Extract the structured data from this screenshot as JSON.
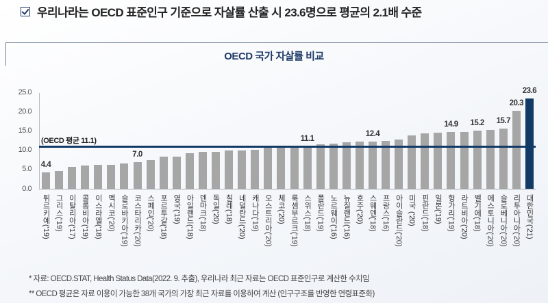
{
  "headline": "우리나라는 OECD 표준인구 기준으로 자살률 산출 시 23.6명으로 평균의 2.1배 수준",
  "headline_icon": "checkbox-checked-icon",
  "chart_data": {
    "type": "bar",
    "title": "OECD 국가 자살률 비교",
    "xlabel": "",
    "ylabel": "",
    "ylim": [
      0,
      25
    ],
    "yticks": [
      "0.0",
      "5.0",
      "10.0",
      "15.0",
      "20.0",
      "25.0"
    ],
    "grid": false,
    "categories": [
      "튀르키예('19)",
      "그리스('19)",
      "이탈리아('17)",
      "콜롬비아('19)",
      "이스라엘('18)",
      "멕시코('20)",
      "슬로바키아('19)",
      "코스타리카('20)",
      "스페인('20)",
      "포르투갈('18)",
      "영국('19)",
      "아일랜드('18)",
      "덴마크('18)",
      "독일('20)",
      "칠레('18)",
      "네덜란드('20)",
      "캐나다('19)",
      "오스트리아('20)",
      "체코('20)",
      "룩셈부르크('19)",
      "스위스('18)",
      "폴란드('19)",
      "노르웨이('16)",
      "뉴질랜드('16)",
      "호주('20)",
      "스웨덴('18)",
      "프랑스('16)",
      "아이슬란드('20)",
      "미국 ('20)",
      "핀란드('18)",
      "일본('19)",
      "헝가리('19)",
      "라트비아('20)",
      "벨기에('18)",
      "에스토니아('20)",
      "슬로베니아('20)",
      "리투아니아('20)",
      "대한민국('21)"
    ],
    "values": [
      4.4,
      4.7,
      5.8,
      6.1,
      6.3,
      6.3,
      6.7,
      7.0,
      7.5,
      8.4,
      8.4,
      9.3,
      9.7,
      9.7,
      10.0,
      10.0,
      10.3,
      10.9,
      10.9,
      11.0,
      11.1,
      11.7,
      11.9,
      12.1,
      12.3,
      12.4,
      12.6,
      12.8,
      14.0,
      14.5,
      14.7,
      14.9,
      14.9,
      15.2,
      15.3,
      15.7,
      20.3,
      23.6
    ],
    "data_labels": {
      "0": "4.4",
      "7": "7.0",
      "20": "11.1",
      "25": "12.4",
      "31": "14.9",
      "33": "15.2",
      "35": "15.7",
      "36": "20.3",
      "37": "23.6"
    },
    "highlight_index": 37,
    "colors": {
      "bar": "#a6a6a6",
      "highlight": "#123a66",
      "average_line": "#123a66"
    },
    "reference_line": {
      "value": 11.1,
      "label": "(OECD 평균 11.1)"
    }
  },
  "notes": [
    "* 자료: OECD.STAT, Health Status Data(2022. 9. 추출), 우리나라 최근 자료는 OECD 표준인구로 계산한 수치임",
    "** OECD 평균은 자료 이용이 가능한 38개 국가의 가장 최근 자료를 이용하여 계산 (인구구조를 반영한 연령표준화)"
  ]
}
